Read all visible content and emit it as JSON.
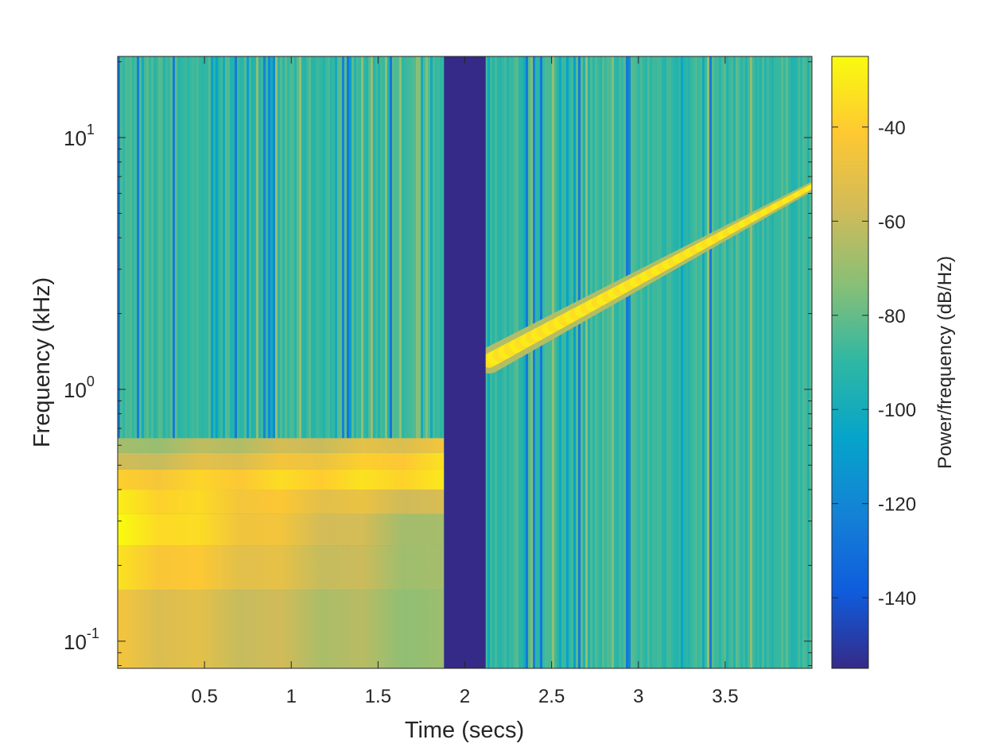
{
  "chart_data": {
    "type": "heatmap",
    "title": "",
    "xlabel": "Time (secs)",
    "ylabel": "Frequency (kHz)",
    "colorbar_label": "Power/frequency (dB/Hz)",
    "x_scale": "linear",
    "y_scale": "log",
    "xlim": [
      0.0,
      4.0
    ],
    "ylim": [
      0.078,
      21.0
    ],
    "clim": [
      -155,
      -25
    ],
    "x_ticks": [
      0.5,
      1,
      1.5,
      2,
      2.5,
      3,
      3.5
    ],
    "x_tick_labels": [
      "0.5",
      "1",
      "1.5",
      "2",
      "2.5",
      "3",
      "3.5"
    ],
    "y_ticks": [
      0.1,
      1,
      10
    ],
    "y_tick_labels": [
      {
        "base": "10",
        "exp": "-1"
      },
      {
        "base": "10",
        "exp": "0"
      },
      {
        "base": "10",
        "exp": "1"
      }
    ],
    "colorbar_ticks": [
      -40,
      -60,
      -80,
      -100,
      -120,
      -140
    ],
    "colorbar_tick_labels": [
      "-40",
      "-60",
      "-80",
      "-100",
      "-120",
      "-140"
    ],
    "colormap": "parula",
    "grid": false,
    "background_level_db": -88,
    "segments": [
      {
        "name": "tone-steps",
        "t_start": 0.0,
        "t_end": 1.88,
        "bands": [
          {
            "f_low": 0.078,
            "f_high": 0.16,
            "db_start": -48,
            "db_end": -72
          },
          {
            "f_low": 0.16,
            "f_high": 0.24,
            "db_start": -36,
            "db_end": -70
          },
          {
            "f_low": 0.24,
            "f_high": 0.32,
            "db_start": -27,
            "db_end": -70
          },
          {
            "f_low": 0.32,
            "f_high": 0.4,
            "db_start": -32,
            "db_end": -58
          },
          {
            "f_low": 0.4,
            "f_high": 0.48,
            "db_start": -42,
            "db_end": -34
          },
          {
            "f_low": 0.48,
            "f_high": 0.56,
            "db_start": -60,
            "db_end": -36
          },
          {
            "f_low": 0.56,
            "f_high": 0.64,
            "db_start": -70,
            "db_end": -48
          }
        ]
      },
      {
        "name": "silence",
        "t_start": 1.88,
        "t_end": 2.12,
        "db": -155
      },
      {
        "name": "chirp",
        "t_start": 2.14,
        "t_end": 4.0,
        "f_start_khz": 1.3,
        "f_end_khz": 6.4,
        "peak_db": -34
      }
    ]
  }
}
